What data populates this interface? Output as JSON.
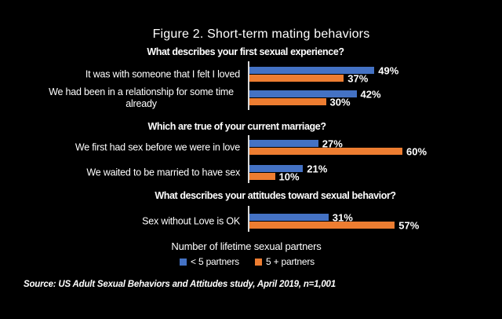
{
  "title": "Figure 2. Short-term mating behaviors",
  "source_note": "Source: US Adult Sexual Behaviors and Attitudes study, April 2019, n=1,001",
  "colors": {
    "background": "#000000",
    "text": "#ffffff",
    "axis_line": "#d9d9d9",
    "series_blue": "#4472C4",
    "series_orange": "#ED7D31"
  },
  "chart_data": {
    "type": "bar",
    "orientation": "horizontal",
    "unit": "%",
    "xlim": [
      0,
      100
    ],
    "grid": false,
    "legend_position": "bottom",
    "legend_title": "Number of lifetime sexual partners",
    "series": [
      {
        "name": "< 5 partners",
        "color": "#4472C4"
      },
      {
        "name": "5 + partners",
        "color": "#ED7D31"
      }
    ],
    "sections": [
      {
        "question": "What describes your first sexual experience?",
        "rows": [
          {
            "label": "It was with someone that I felt I loved",
            "values": [
              49,
              37
            ]
          },
          {
            "label": "We had been in a relationship for some time already",
            "values": [
              42,
              30
            ]
          }
        ]
      },
      {
        "question": "Which are true of your current marriage?",
        "rows": [
          {
            "label": "We first had sex before we were in love",
            "values": [
              27,
              60
            ]
          },
          {
            "label": "We waited to be married to have sex",
            "values": [
              21,
              10
            ]
          }
        ]
      },
      {
        "question": "What describes your attitudes toward sexual behavior?",
        "rows": [
          {
            "label": "Sex without Love is OK",
            "values": [
              31,
              57
            ]
          }
        ]
      }
    ]
  }
}
